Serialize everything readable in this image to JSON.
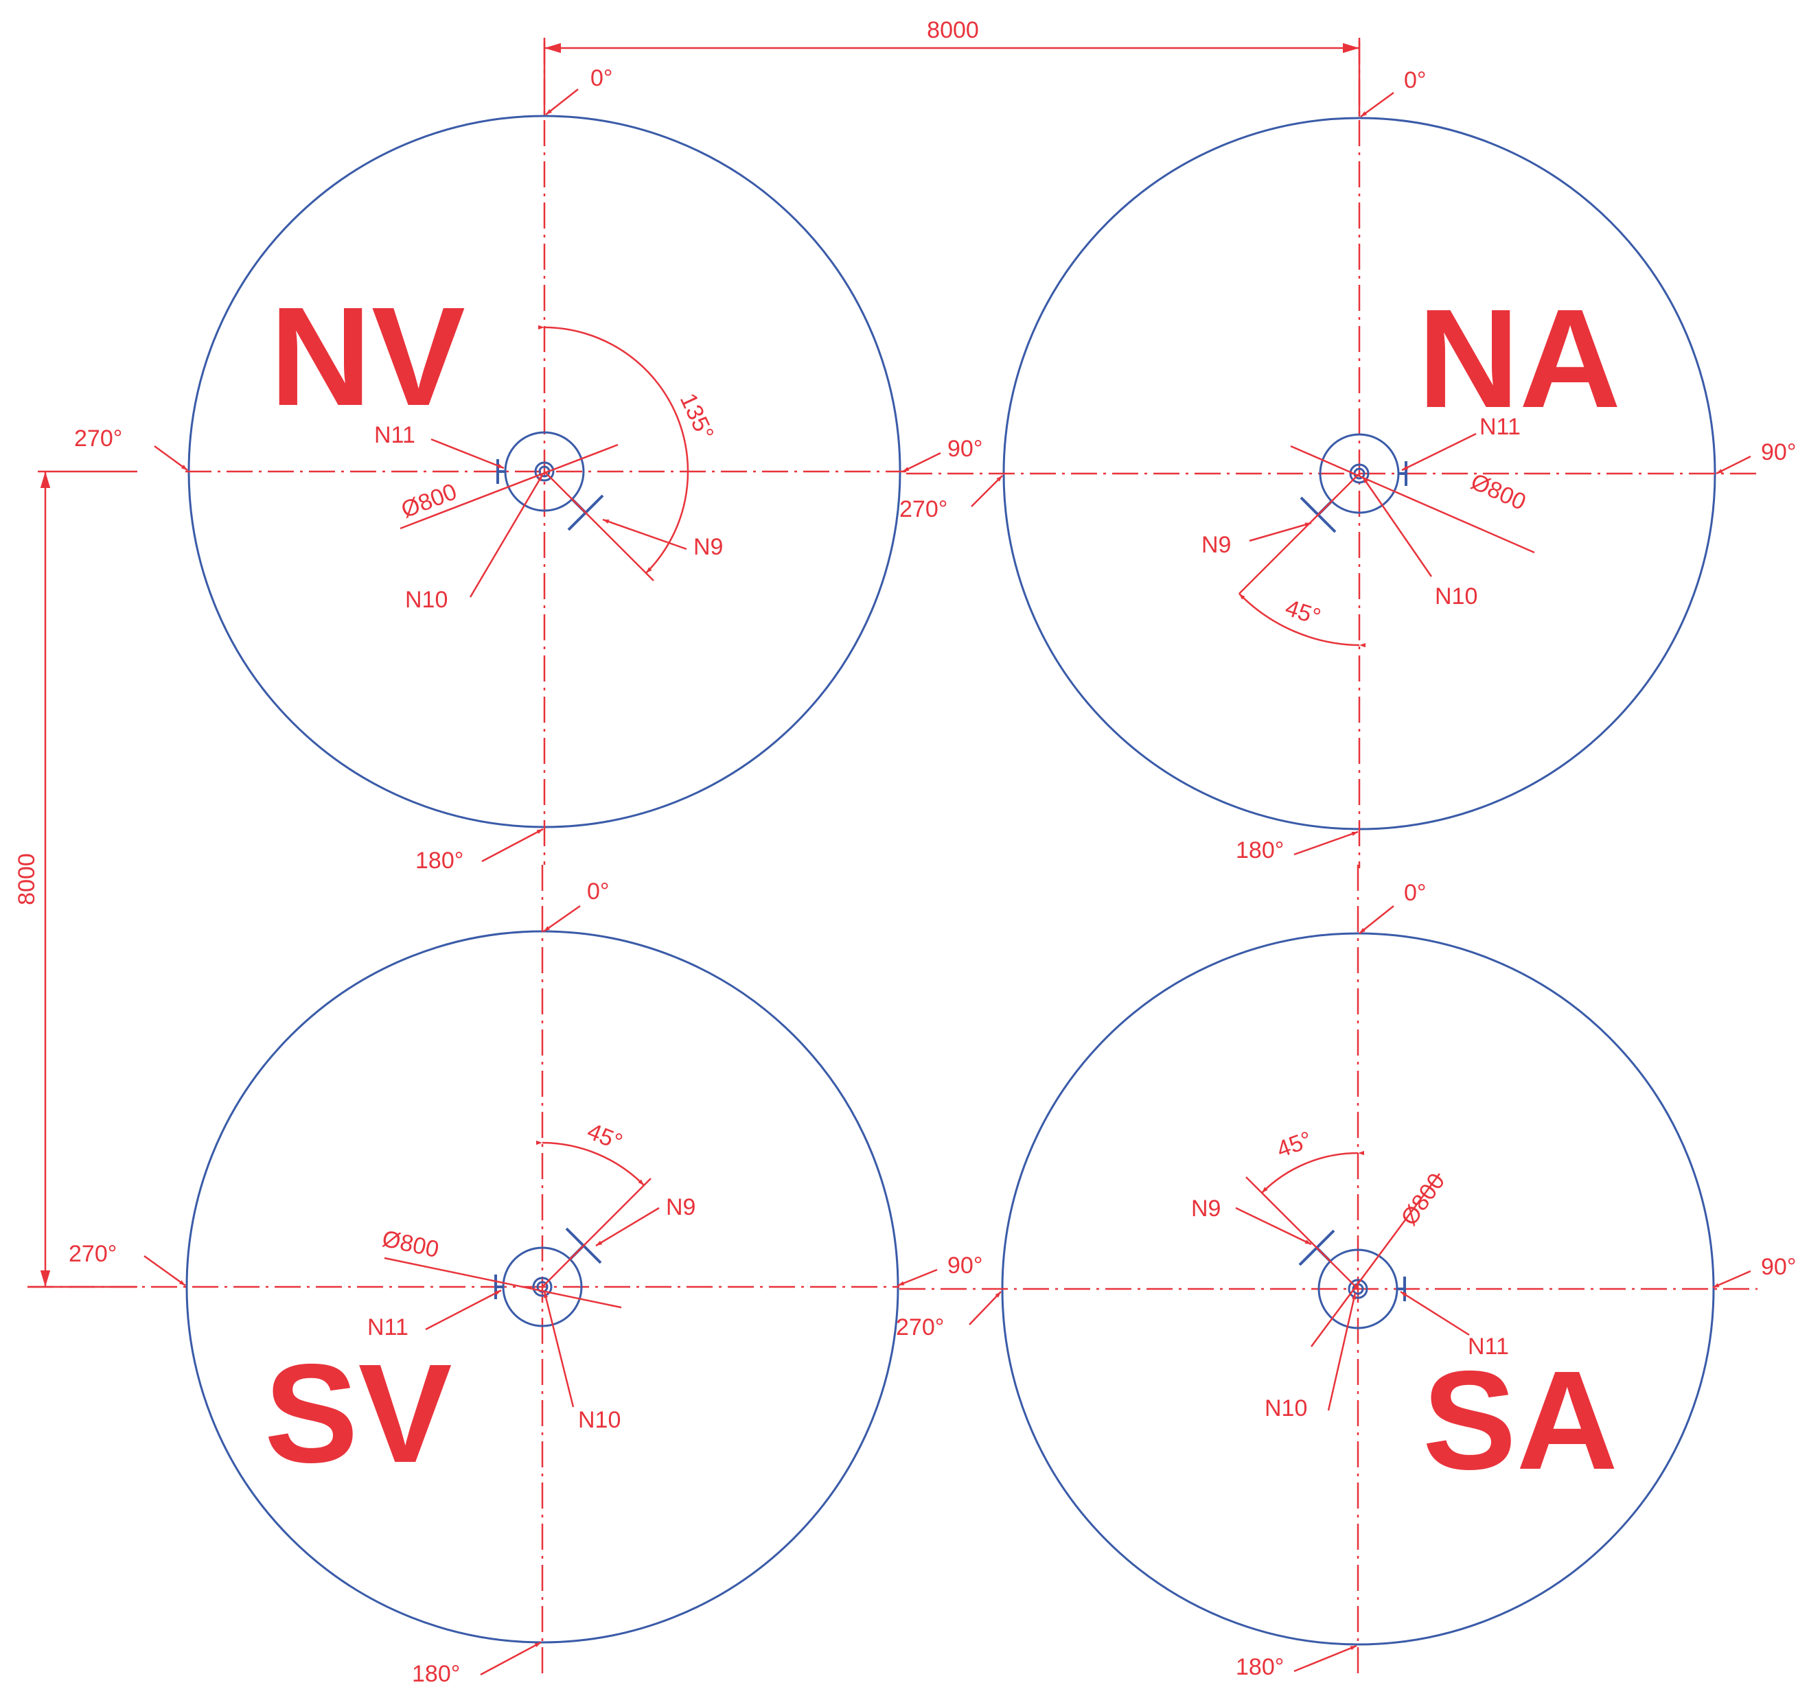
{
  "colors": {
    "outline": "#3a5ba8",
    "annotation": "#e8333b",
    "background": "#ffffff"
  },
  "dimensions": {
    "horizontal": "8000",
    "vertical": "8000"
  },
  "tanks": [
    {
      "id": "NV",
      "name": "NV",
      "angles": {
        "top": "0°",
        "right": "90°",
        "bottom": "180°",
        "left": "270°"
      },
      "nozzles": {
        "n9": "N9",
        "n10": "N10",
        "n11": "N11"
      },
      "diameter": "Ø800",
      "arc_angle": "135°"
    },
    {
      "id": "NA",
      "name": "NA",
      "angles": {
        "top": "0°",
        "right": "90°",
        "bottom": "180°",
        "left": "270°"
      },
      "nozzles": {
        "n9": "N9",
        "n10": "N10",
        "n11": "N11"
      },
      "diameter": "Ø800",
      "arc_angle": "45°"
    },
    {
      "id": "SV",
      "name": "SV",
      "angles": {
        "top": "0°",
        "right": "90°",
        "bottom": "180°",
        "left": "270°"
      },
      "nozzles": {
        "n9": "N9",
        "n10": "N10",
        "n11": "N11"
      },
      "diameter": "Ø800",
      "arc_angle": "45°"
    },
    {
      "id": "SA",
      "name": "SA",
      "angles": {
        "top": "0°",
        "right": "90°",
        "bottom": "180°",
        "left": "270°"
      },
      "nozzles": {
        "n9": "N9",
        "n10": "N10",
        "n11": "N11"
      },
      "diameter": "Ø800",
      "arc_angle": "45°"
    }
  ]
}
